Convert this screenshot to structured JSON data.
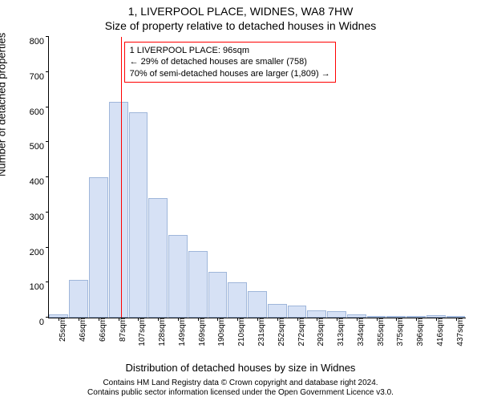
{
  "chart": {
    "type": "histogram",
    "title": "1, LIVERPOOL PLACE, WIDNES, WA8 7HW",
    "subtitle": "Size of property relative to detached houses in Widnes",
    "ylabel": "Number of detached properties",
    "xlabel": "Distribution of detached houses by size in Widnes",
    "ylim": [
      0,
      800
    ],
    "ytick_step": 100,
    "x_categories": [
      "25sqm",
      "46sqm",
      "66sqm",
      "87sqm",
      "107sqm",
      "128sqm",
      "149sqm",
      "169sqm",
      "190sqm",
      "210sqm",
      "231sqm",
      "252sqm",
      "272sqm",
      "293sqm",
      "313sqm",
      "334sqm",
      "355sqm",
      "375sqm",
      "396sqm",
      "416sqm",
      "437sqm"
    ],
    "values": [
      10,
      108,
      400,
      615,
      585,
      340,
      235,
      190,
      130,
      100,
      75,
      40,
      35,
      20,
      18,
      10,
      0,
      5,
      0,
      8,
      0
    ],
    "bar_color": "#d6e1f5",
    "bar_border": "#9fb6da",
    "reference_line": {
      "x_value": 96,
      "color": "#ff0000"
    },
    "annotation": {
      "border_color": "#ff0000",
      "bg_color": "#ffffff",
      "lines": [
        "1 LIVERPOOL PLACE: 96sqm",
        "← 29% of detached houses are smaller (758)",
        "70% of semi-detached houses are larger (1,809) →"
      ]
    },
    "background_color": "#ffffff",
    "axis_color": "#000000",
    "x_min": 25,
    "x_max": 437,
    "title_fontsize": 14,
    "label_fontsize": 13,
    "tick_fontsize": 11
  },
  "footer": {
    "line1": "Contains HM Land Registry data © Crown copyright and database right 2024.",
    "line2": "Contains public sector information licensed under the Open Government Licence v3.0."
  }
}
